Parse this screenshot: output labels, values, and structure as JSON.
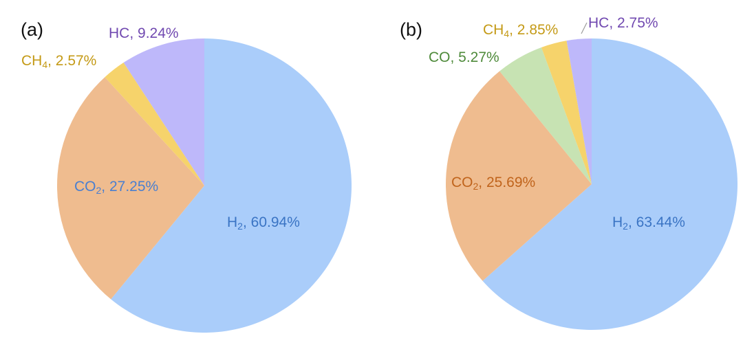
{
  "chart_data": [
    {
      "type": "pie",
      "panel_label": "(a)",
      "slices": [
        {
          "name": "H",
          "sub": "2",
          "value": 60.94,
          "text": ", 60.94%",
          "color": "#aacdfa",
          "label_color": "#3a74c4"
        },
        {
          "name": "CO",
          "sub": "2",
          "value": 27.25,
          "text": ", 27.25%",
          "color": "#efbc8f",
          "label_color": "#4a7fd0"
        },
        {
          "name": "CH",
          "sub": "4",
          "value": 2.57,
          "text": ", 2.57%",
          "color": "#f6d36b",
          "label_color": "#c49a16"
        },
        {
          "name": "HC",
          "sub": "",
          "value": 9.24,
          "text": ", 9.24%",
          "color": "#beb8fa",
          "label_color": "#7048b0"
        }
      ]
    },
    {
      "type": "pie",
      "panel_label": "(b)",
      "slices": [
        {
          "name": "H",
          "sub": "2",
          "value": 63.44,
          "text": ", 63.44%",
          "color": "#aacdfa",
          "label_color": "#3a74c4"
        },
        {
          "name": "CO",
          "sub": "2",
          "value": 25.69,
          "text": ", 25.69%",
          "color": "#efbc8f",
          "label_color": "#c0641c"
        },
        {
          "name": "CO",
          "sub": "",
          "value": 5.27,
          "text": ", 5.27%",
          "color": "#c7e3b3",
          "label_color": "#4e8a3a"
        },
        {
          "name": "CH",
          "sub": "4",
          "value": 2.85,
          "text": ", 2.85%",
          "color": "#f6d36b",
          "label_color": "#c49a16"
        },
        {
          "name": "HC",
          "sub": "",
          "value": 2.75,
          "text": ", 2.75%",
          "color": "#beb8fa",
          "label_color": "#7048b0"
        }
      ]
    }
  ]
}
